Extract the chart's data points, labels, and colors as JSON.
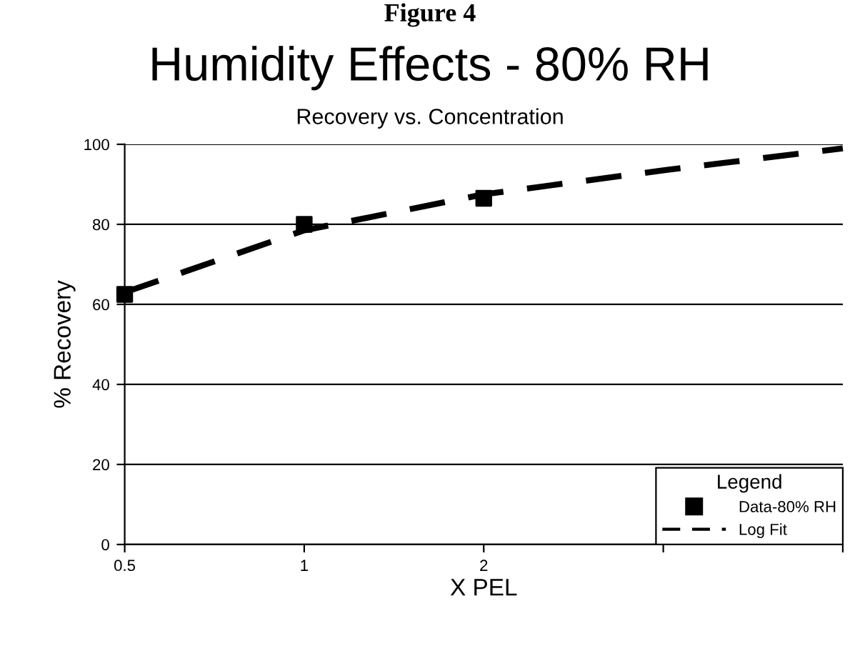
{
  "chart_data": {
    "type": "scatter",
    "title": "Humidity Effects - 80% RH",
    "subtitle": "Recovery vs. Concentration",
    "xlabel": "X PEL",
    "ylabel": "% Recovery",
    "legend_title": "Legend",
    "annotations": [
      "Figure 4"
    ],
    "log": "x",
    "xlim": [
      0.5,
      8
    ],
    "xticks": [
      0.5,
      1,
      2,
      {
        "value": 4,
        "label": null
      },
      {
        "value": 8,
        "label": null
      }
    ],
    "ylim": [
      0,
      100
    ],
    "yticks": [
      0,
      20,
      40,
      60,
      80,
      100
    ],
    "grid": "y",
    "legend": "bottom right",
    "series": [
      {
        "name": "Data-80% RH",
        "marker": "square",
        "color": "#000000",
        "x": [
          0.5,
          1,
          2
        ],
        "values": [
          62.5,
          80,
          86.5
        ]
      },
      {
        "name": "Log Fit",
        "type": "line",
        "marker": "none",
        "line_style": "dashed",
        "color": "#000000",
        "x": [
          0.5,
          1,
          2,
          4,
          8
        ],
        "values": [
          63,
          78.5,
          87.5,
          93.5,
          99
        ]
      }
    ]
  }
}
